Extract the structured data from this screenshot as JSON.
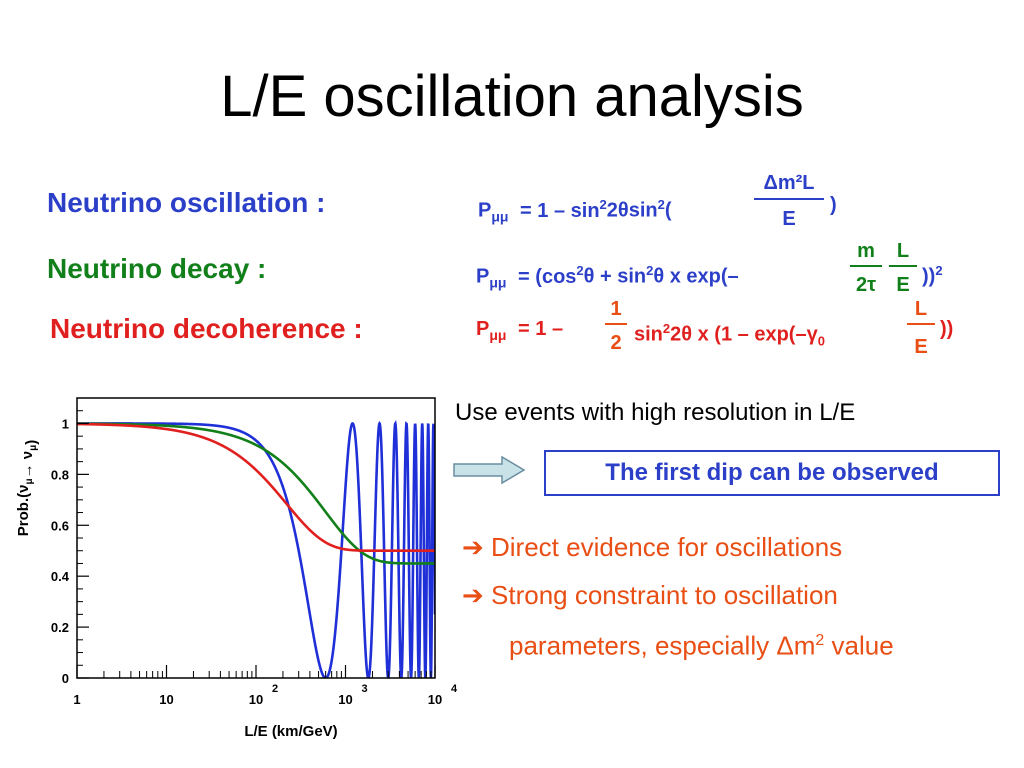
{
  "slide": {
    "title": "L/E oscillation analysis"
  },
  "models": {
    "oscillation": {
      "label": "Neutrino oscillation :",
      "p_main": "P",
      "p_sub": "μμ",
      "expr_a": "= 1 – sin",
      "sup_a": "2",
      "expr_b": "2θsin",
      "sup_b": "2",
      "expr_c": "(",
      "frac_num": "Δm²L",
      "frac_den": "E",
      "expr_d": ")",
      "color": "#2b3fc8"
    },
    "decay": {
      "label": "Neutrino decay  :",
      "p_main": "P",
      "p_sub": "μμ",
      "expr_a": "= (cos",
      "sup_a": "2",
      "expr_b": "θ + sin",
      "sup_b": "2",
      "expr_c": "θ x exp(–",
      "frac1_num": "m",
      "frac1_den": "2τ",
      "frac2_num": "L",
      "frac2_den": "E",
      "expr_d": "))",
      "sup_d": "2",
      "label_color": "#12801a",
      "formula_color": "#2b3fc8",
      "accent": "#12801a"
    },
    "decoherence": {
      "label": "Neutrino decoherence :",
      "p_main": "P",
      "p_sub": "μμ",
      "expr_a": "= 1 –",
      "frac1_num": "1",
      "frac1_den": "2",
      "expr_b": "sin",
      "sup_b": "2",
      "expr_c": "2θ x (1 – exp(–γ",
      "sub_c": "0",
      "frac2_num": "L",
      "frac2_den": "E",
      "expr_d": "))",
      "color": "#e0201f",
      "accent": "#e94e14"
    }
  },
  "notes": {
    "heading": "Use events with high resolution in L/E",
    "box": "The first dip can be observed",
    "bullet1": "➔ Direct evidence for oscillations",
    "bullet2": "➔ Strong constraint to oscillation",
    "bullet2_cont_a": "parameters, especially Δm",
    "bullet2_cont_sup": "2",
    "bullet2_cont_b": " value",
    "box_color": "#2b3fc8",
    "bullet_color": "#e94e14"
  },
  "chart_data": {
    "type": "line",
    "xscale": "log",
    "xlim": [
      1,
      10000
    ],
    "ylim": [
      0,
      1.1
    ],
    "xlabel": "L/E   (km/GeV)",
    "ylabel_main": "Prob.(",
    "ylabel_nu1": "ν",
    "ylabel_sub1": "μ",
    "ylabel_arrow": "→ ",
    "ylabel_nu2": "ν",
    "ylabel_sub2": "μ",
    "ylabel_close": ")",
    "xticks": [
      {
        "value": 1,
        "base": "1",
        "exp": ""
      },
      {
        "value": 10,
        "base": "10",
        "exp": ""
      },
      {
        "value": 100,
        "base": "10",
        "exp": "2"
      },
      {
        "value": 1000,
        "base": "10",
        "exp": "3"
      },
      {
        "value": 10000,
        "base": "10",
        "exp": "4"
      }
    ],
    "yticks": [
      {
        "value": 0,
        "label": "0"
      },
      {
        "value": 0.2,
        "label": "0.2"
      },
      {
        "value": 0.4,
        "label": "0.4"
      },
      {
        "value": 0.6,
        "label": "0.6"
      },
      {
        "value": 0.8,
        "label": "0.8"
      },
      {
        "value": 1,
        "label": "1"
      }
    ],
    "series": [
      {
        "model": "oscillation",
        "color": "#1f30d8",
        "min_at": 600,
        "approx_note": "oscillates between 0 and 1; first minimum near L/E ≈ 600"
      },
      {
        "model": "decay",
        "color": "#12801a",
        "plateau": 0.45
      },
      {
        "model": "decoherence",
        "color": "#e0201f",
        "plateau": 0.5
      }
    ],
    "grid": false
  }
}
